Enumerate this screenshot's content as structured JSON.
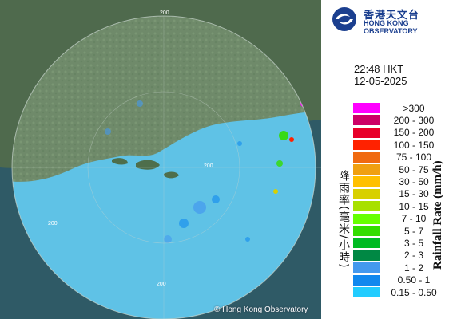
{
  "logo": {
    "name_cn": "香港天文台",
    "name_en": "HONG KONG OBSERVATORY",
    "icon": "hko-logo-icon"
  },
  "timestamp": {
    "time": "22:48 HKT",
    "date": "12-05-2025"
  },
  "legend": {
    "title_cn": "降雨率(毫米/小時)",
    "title_en": "Rainfall Rate (mm/h)",
    "items": [
      {
        "label": ">300",
        "color": "#ff00ff"
      },
      {
        "label": "200 - 300",
        "color": "#cc0066"
      },
      {
        "label": "150 - 200",
        "color": "#e8002a"
      },
      {
        "label": "100 - 150",
        "color": "#ff2200"
      },
      {
        "label": "75 - 100",
        "color": "#f06a10"
      },
      {
        "label": "50 - 75",
        "color": "#f0a010"
      },
      {
        "label": "30 - 50",
        "color": "#ffc000"
      },
      {
        "label": "15 - 30",
        "color": "#d8d000"
      },
      {
        "label": "10 - 15",
        "color": "#a8e000"
      },
      {
        "label": "7 - 10",
        "color": "#66ff00"
      },
      {
        "label": "5 - 7",
        "color": "#33dd00"
      },
      {
        "label": "3 - 5",
        "color": "#00bb22"
      },
      {
        "label": "2 - 3",
        "color": "#008844"
      },
      {
        "label": "1 - 2",
        "color": "#4499ee"
      },
      {
        "label": "0.50 - 1",
        "color": "#1188ee"
      },
      {
        "label": "0.15 - 0.50",
        "color": "#22ccff"
      }
    ]
  },
  "map": {
    "range_labels": [
      "200",
      "200",
      "200",
      "200"
    ],
    "copyright": "© Hong Kong Observatory"
  }
}
